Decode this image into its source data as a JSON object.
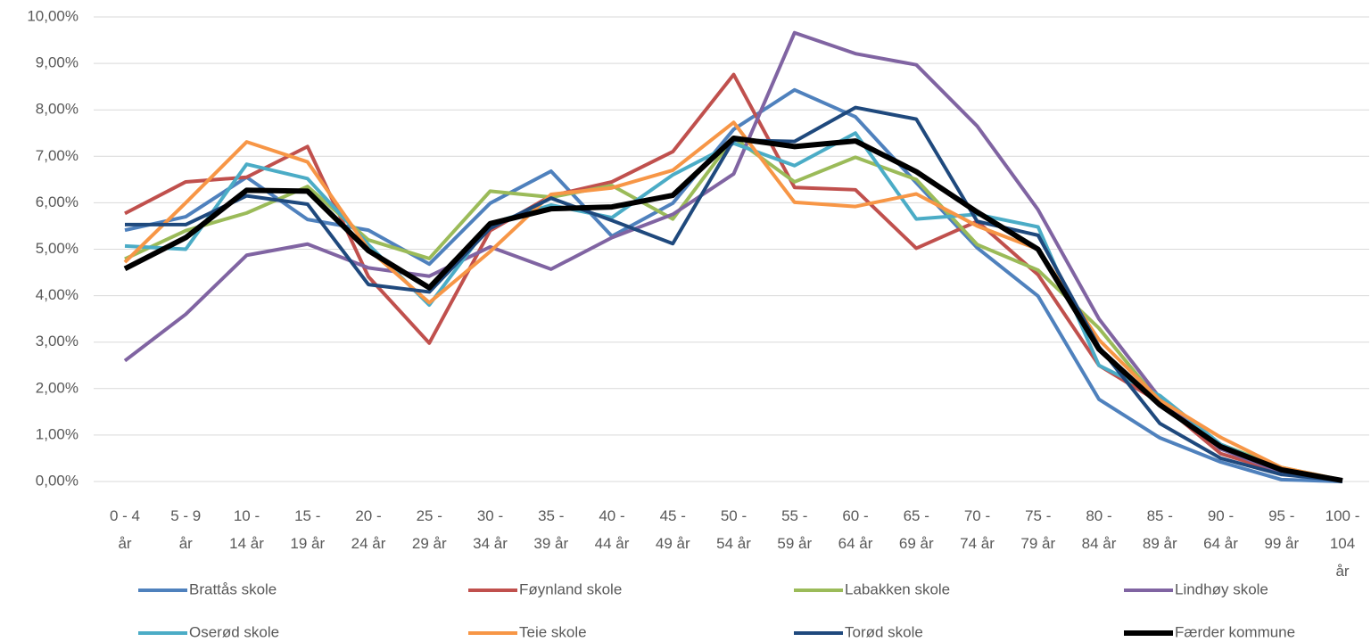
{
  "chart_data": {
    "type": "line",
    "categories": [
      "0 - 4 år",
      "5 - 9 år",
      "10 - 14 år",
      "15 - 19 år",
      "20 - 24 år",
      "25 - 29 år",
      "30 - 34 år",
      "35 - 39 år",
      "40 - 44 år",
      "45 - 49 år",
      "50 - 54 år",
      "55 - 59 år",
      "60 - 64 år",
      "65 - 69 år",
      "70 - 74 år",
      "75 - 79 år",
      "80 - 84 år",
      "85 - 89 år",
      "90 - 64 år",
      "95 - 99 år",
      "100 - 104 år"
    ],
    "series": [
      {
        "name": "Brattås skole",
        "color": "#4f81bd",
        "width": 4,
        "values": [
          5.41,
          5.7,
          6.55,
          5.64,
          5.41,
          4.68,
          5.99,
          6.68,
          5.28,
          5.99,
          7.58,
          8.43,
          7.85,
          6.43,
          5.03,
          3.99,
          1.77,
          0.94,
          0.42,
          0.04,
          0.0
        ]
      },
      {
        "name": "Føynland skole",
        "color": "#c0504d",
        "width": 4,
        "values": [
          5.77,
          6.45,
          6.55,
          7.21,
          4.41,
          2.98,
          5.4,
          6.15,
          6.45,
          7.1,
          8.76,
          6.33,
          6.28,
          5.02,
          5.6,
          4.45,
          2.5,
          1.7,
          0.6,
          0.2,
          0.02
        ]
      },
      {
        "name": "Labakken skole",
        "color": "#9bbb59",
        "width": 4,
        "values": [
          4.79,
          5.4,
          5.78,
          6.35,
          5.2,
          4.8,
          6.25,
          6.12,
          6.37,
          5.65,
          7.4,
          6.45,
          6.98,
          6.5,
          5.1,
          4.55,
          3.3,
          1.7,
          0.8,
          0.3,
          0.03
        ]
      },
      {
        "name": "Lindhøy skole",
        "color": "#8064a2",
        "width": 4,
        "values": [
          2.6,
          3.6,
          4.87,
          5.11,
          4.6,
          4.42,
          5.05,
          4.57,
          5.25,
          5.75,
          6.62,
          9.66,
          9.21,
          8.97,
          7.65,
          5.85,
          3.5,
          1.8,
          0.7,
          0.2,
          0.02
        ]
      },
      {
        "name": "Oserød skole",
        "color": "#4bacc6",
        "width": 4,
        "values": [
          5.07,
          5.0,
          6.83,
          6.52,
          5.1,
          3.8,
          5.55,
          5.95,
          5.68,
          6.6,
          7.28,
          6.8,
          7.5,
          5.65,
          5.75,
          5.48,
          2.5,
          1.85,
          0.8,
          0.25,
          0.02
        ]
      },
      {
        "name": "Teie skole",
        "color": "#f79646",
        "width": 4,
        "values": [
          4.72,
          6.0,
          7.31,
          6.88,
          5.0,
          3.85,
          4.95,
          6.18,
          6.32,
          6.7,
          7.73,
          6.01,
          5.92,
          6.19,
          5.5,
          5.0,
          3.05,
          1.75,
          0.95,
          0.3,
          0.03
        ]
      },
      {
        "name": "Torød skole",
        "color": "#1f497d",
        "width": 4,
        "values": [
          5.53,
          5.53,
          6.15,
          5.97,
          4.24,
          4.08,
          5.45,
          6.1,
          5.62,
          5.12,
          7.35,
          7.32,
          8.05,
          7.8,
          5.6,
          5.3,
          2.9,
          1.25,
          0.5,
          0.15,
          0.02
        ]
      },
      {
        "name": "Færder kommune",
        "color": "#000000",
        "width": 6,
        "values": [
          4.58,
          5.25,
          6.27,
          6.25,
          4.97,
          4.17,
          5.55,
          5.87,
          5.91,
          6.16,
          7.39,
          7.21,
          7.33,
          6.67,
          5.8,
          5.0,
          2.85,
          1.65,
          0.75,
          0.25,
          0.02
        ]
      }
    ],
    "ylim": [
      0,
      10
    ],
    "yticks": [
      {
        "value": 0,
        "label": "0,00%"
      },
      {
        "value": 1,
        "label": "1,00%"
      },
      {
        "value": 2,
        "label": "2,00%"
      },
      {
        "value": 3,
        "label": "3,00%"
      },
      {
        "value": 4,
        "label": "4,00%"
      },
      {
        "value": 5,
        "label": "5,00%"
      },
      {
        "value": 6,
        "label": "6,00%"
      },
      {
        "value": 7,
        "label": "7,00%"
      },
      {
        "value": 8,
        "label": "8,00%"
      },
      {
        "value": 9,
        "label": "9,00%"
      },
      {
        "value": 10,
        "label": "10,00%"
      }
    ],
    "grid": true,
    "legend": "bottom"
  }
}
